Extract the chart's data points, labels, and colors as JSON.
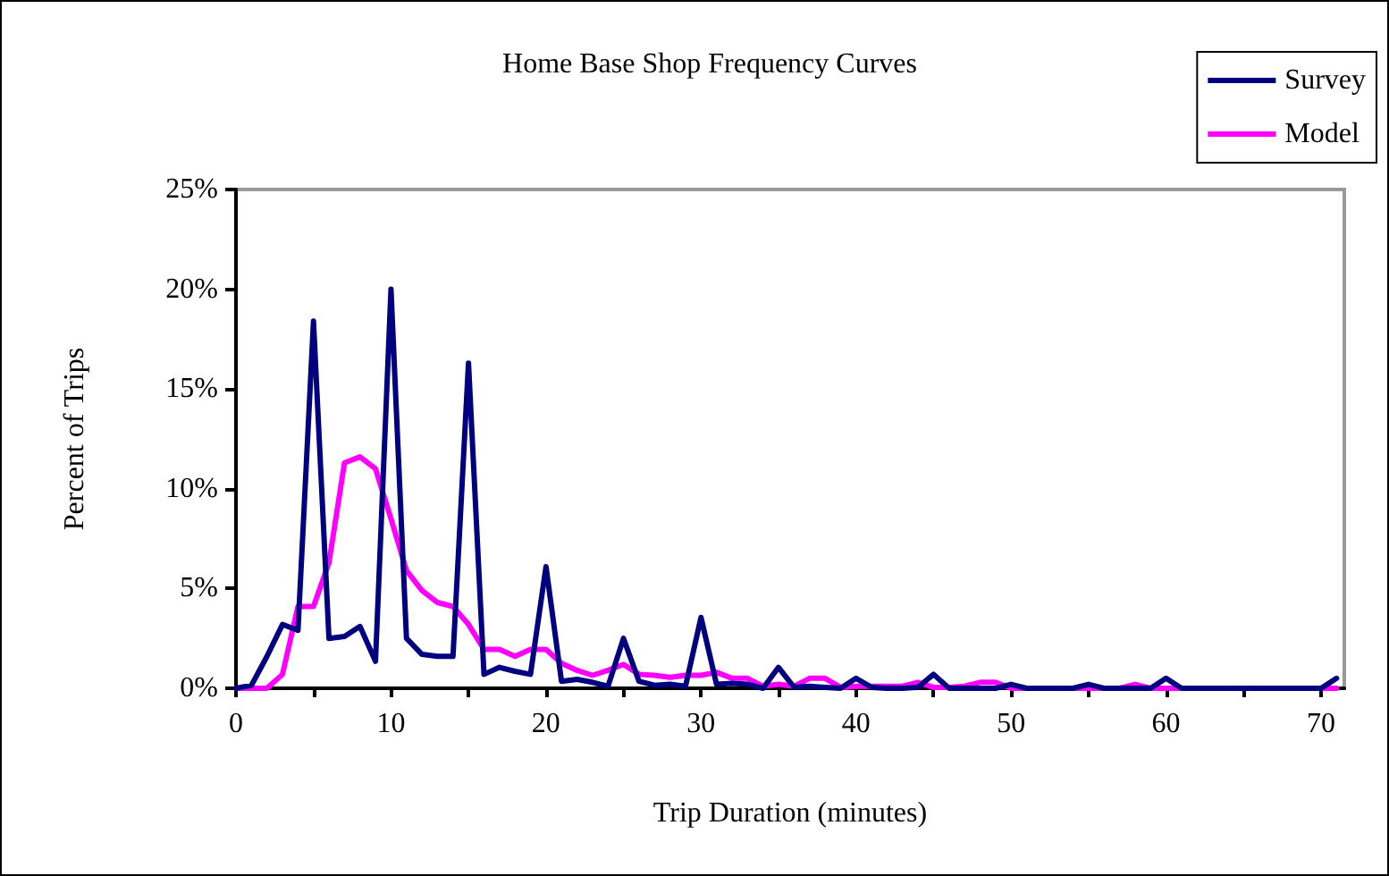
{
  "chart_data": {
    "type": "line",
    "title": "Home Base Shop Frequency Curves",
    "xlabel": "Trip Duration (minutes)",
    "ylabel": "Percent of Trips",
    "x": [
      0,
      1,
      2,
      3,
      4,
      5,
      6,
      7,
      8,
      9,
      10,
      11,
      12,
      13,
      14,
      15,
      16,
      17,
      18,
      19,
      20,
      21,
      22,
      23,
      24,
      25,
      26,
      27,
      28,
      29,
      30,
      31,
      32,
      33,
      34,
      35,
      36,
      37,
      38,
      39,
      40,
      41,
      42,
      43,
      44,
      45,
      46,
      47,
      48,
      49,
      50,
      51,
      52,
      53,
      54,
      55,
      56,
      57,
      58,
      59,
      60,
      61,
      62,
      63,
      64,
      65,
      66,
      67,
      68,
      69,
      70,
      71
    ],
    "series": [
      {
        "name": "Survey",
        "color": "#000080",
        "values": [
          0,
          0.15,
          1.6,
          3.2,
          2.9,
          18.4,
          2.5,
          2.6,
          3.1,
          1.35,
          20.0,
          2.5,
          1.7,
          1.6,
          1.6,
          16.3,
          0.7,
          1.05,
          0.85,
          0.7,
          6.1,
          0.35,
          0.45,
          0.3,
          0.1,
          2.5,
          0.35,
          0.15,
          0.2,
          0.1,
          3.55,
          0.2,
          0.25,
          0.2,
          0,
          1.05,
          0.05,
          0.1,
          0.05,
          0,
          0.5,
          0.05,
          0,
          0,
          0.05,
          0.7,
          0,
          0,
          0,
          0,
          0.2,
          0,
          0,
          0,
          0,
          0.2,
          0,
          0,
          0,
          0,
          0.5,
          0,
          0,
          0,
          0,
          0,
          0,
          0,
          0,
          0,
          0,
          0.5
        ]
      },
      {
        "name": "Model",
        "color": "#ff00ff",
        "values": [
          0,
          0,
          0,
          0.7,
          4.1,
          4.1,
          6.3,
          11.3,
          11.6,
          11.0,
          8.5,
          5.9,
          4.9,
          4.3,
          4.1,
          3.2,
          1.95,
          1.95,
          1.6,
          1.95,
          1.95,
          1.25,
          0.9,
          0.65,
          0.9,
          1.2,
          0.7,
          0.65,
          0.55,
          0.65,
          0.65,
          0.8,
          0.5,
          0.5,
          0.1,
          0.2,
          0.1,
          0.5,
          0.5,
          0.05,
          0.1,
          0.1,
          0.1,
          0.1,
          0.3,
          0.05,
          0.05,
          0.1,
          0.3,
          0.3,
          0,
          0,
          0,
          0,
          0,
          0,
          0,
          0,
          0.2,
          0,
          0,
          0,
          0,
          0,
          0,
          0,
          0,
          0,
          0,
          0,
          0,
          0
        ]
      }
    ],
    "xlim": [
      0,
      71.5
    ],
    "xticks": [
      0,
      {
        "value": 5,
        "label": null
      },
      10,
      {
        "value": 15,
        "label": null
      },
      20,
      {
        "value": 25,
        "label": null
      },
      30,
      {
        "value": 35,
        "label": null
      },
      40,
      {
        "value": 45,
        "label": null
      },
      50,
      {
        "value": 55,
        "label": null
      },
      60,
      {
        "value": 65,
        "label": null
      },
      70
    ],
    "ylim": [
      0,
      25
    ],
    "yticks": [
      {
        "value": 0,
        "label": "0%"
      },
      {
        "value": 5,
        "label": "5%"
      },
      {
        "value": 10,
        "label": "10%"
      },
      {
        "value": 15,
        "label": "15%"
      },
      {
        "value": 20,
        "label": "20%"
      },
      {
        "value": 25,
        "label": "25%"
      }
    ],
    "grid": false,
    "legend": "top right",
    "marker": "none",
    "line_style": "solid"
  }
}
